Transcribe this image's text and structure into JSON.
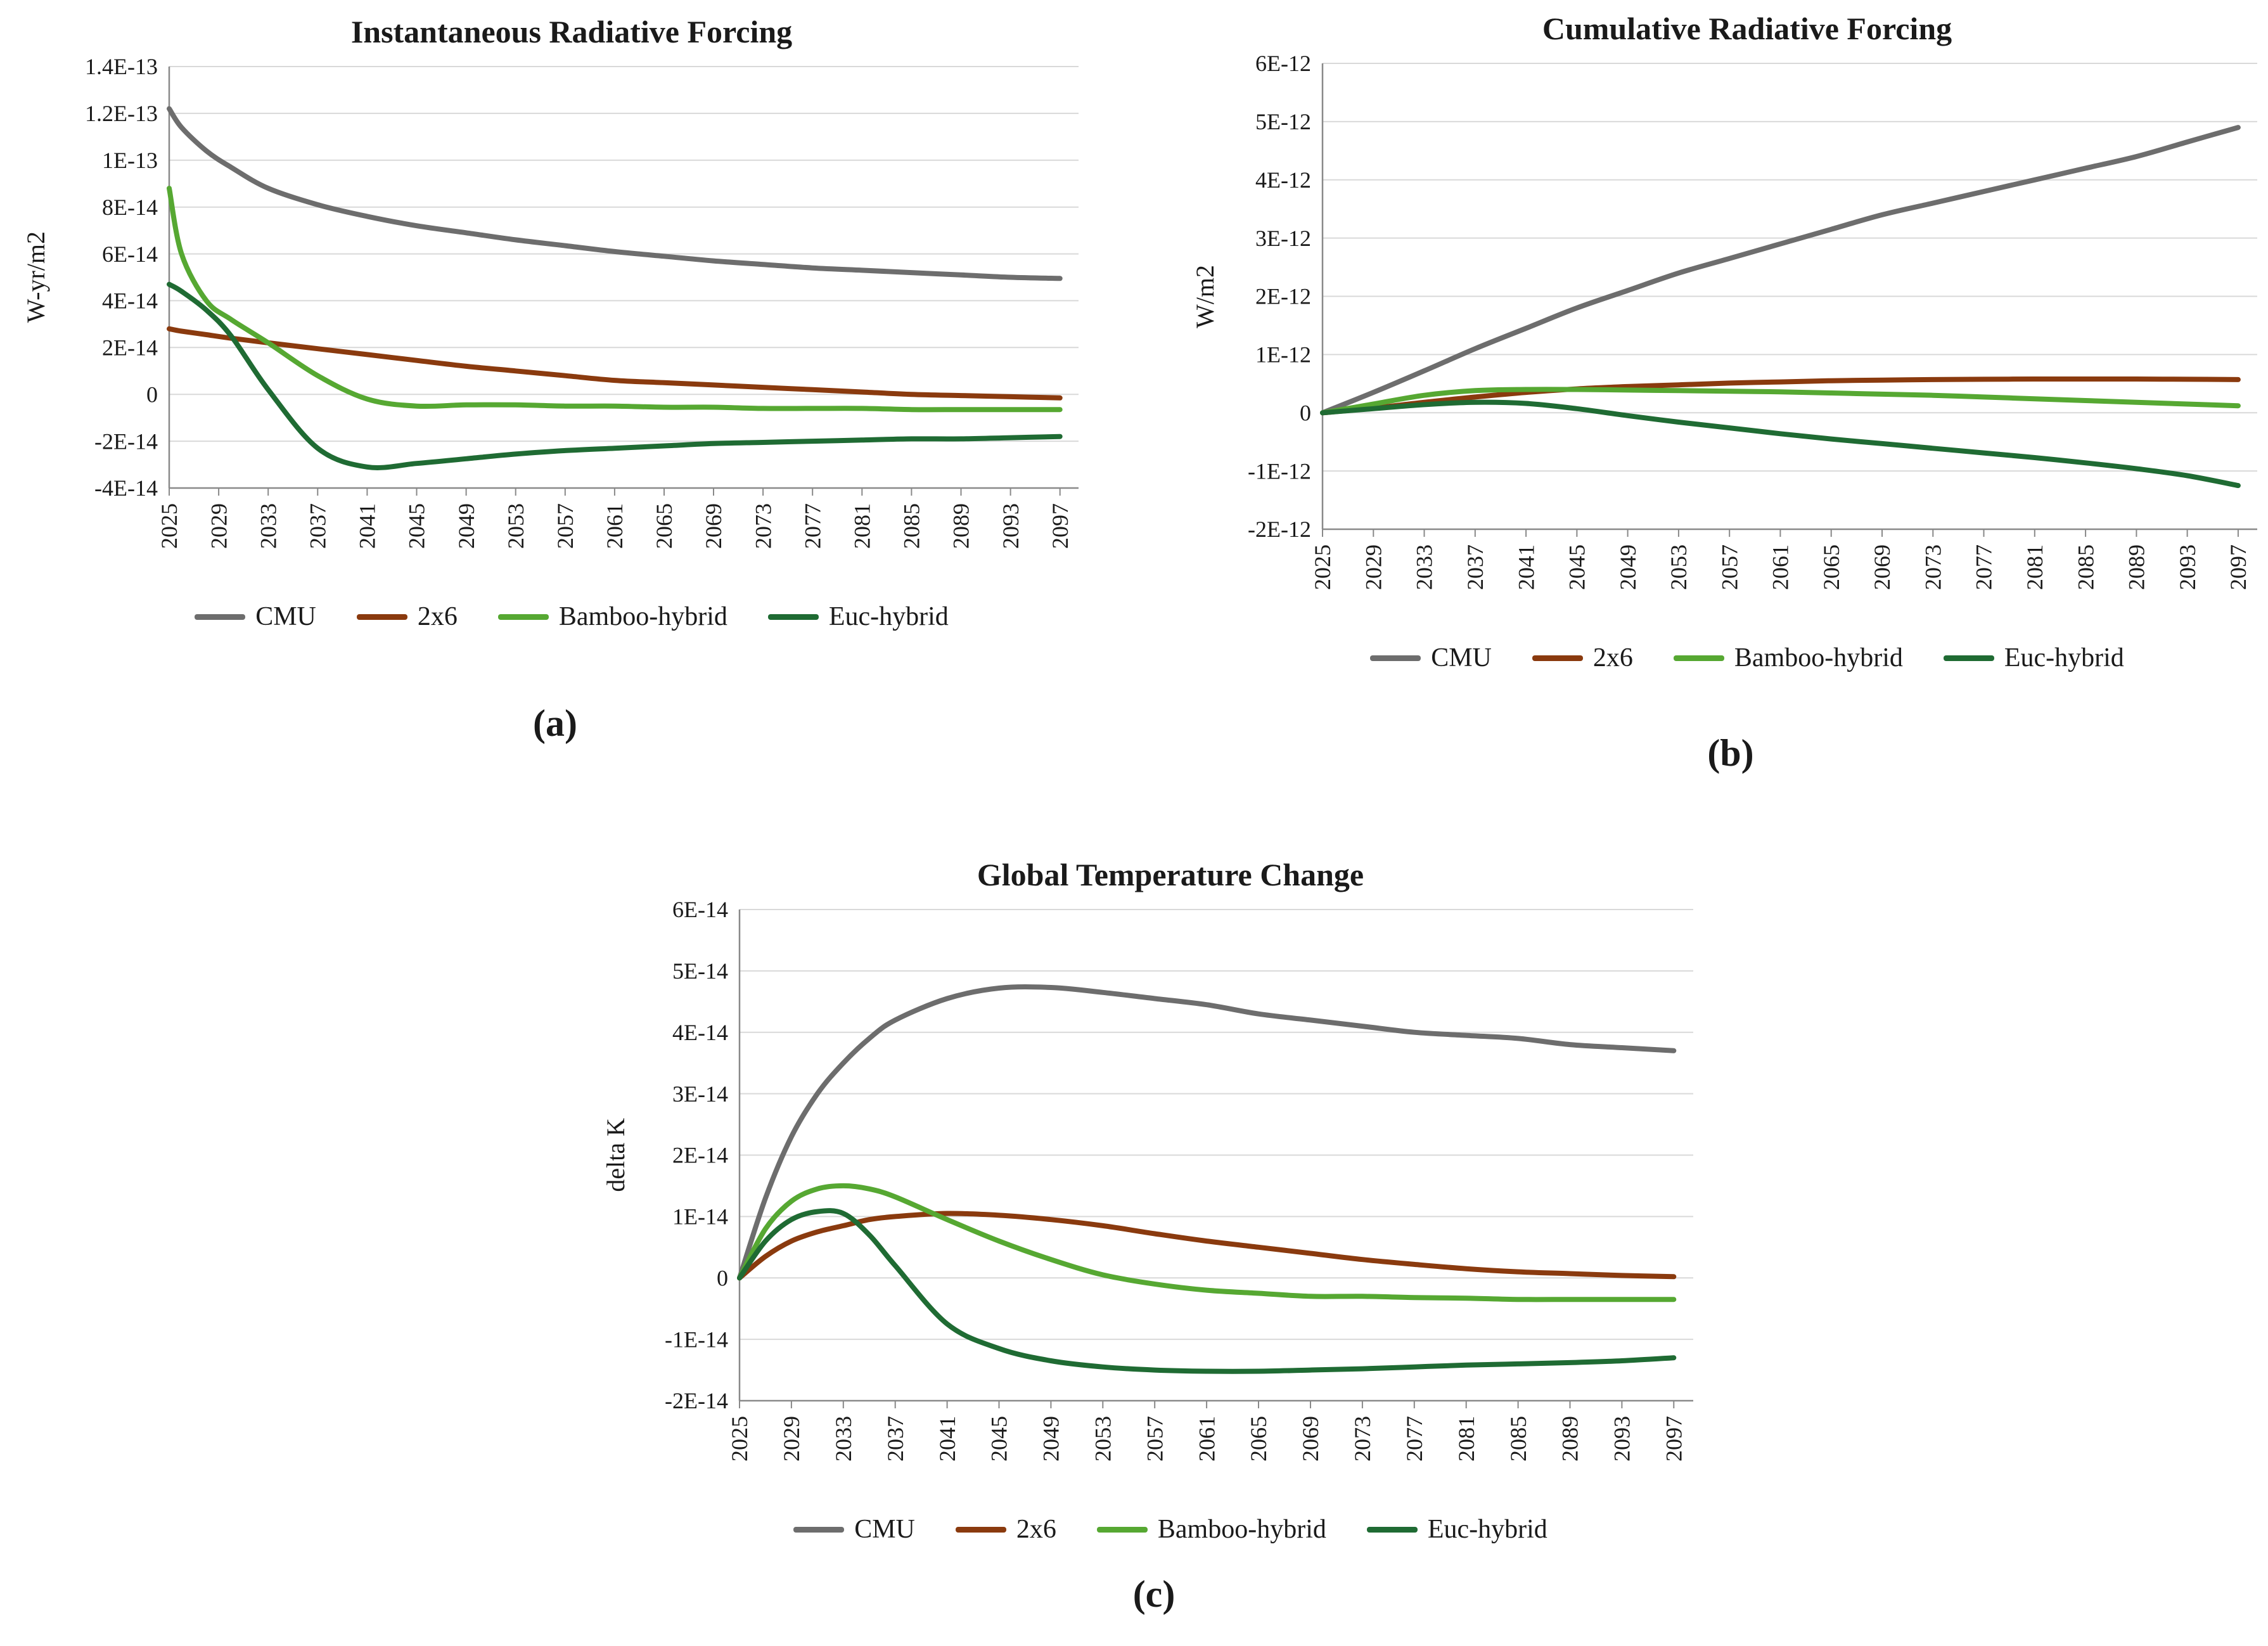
{
  "panel_labels": [
    "(a)",
    "(b)",
    "(c)"
  ],
  "chart_data": [
    {
      "type": "line",
      "title": "Instantaneous Radiative Forcing",
      "xlabel": "",
      "ylabel": "W-yr/m2",
      "xlim": [
        2025,
        2098.5
      ],
      "ylim": [
        -4e-14,
        1.4e-13
      ],
      "grid": true,
      "legend_position": "bottom",
      "xticks": [
        2025,
        2029,
        2033,
        2037,
        2041,
        2045,
        2049,
        2053,
        2057,
        2061,
        2065,
        2069,
        2073,
        2077,
        2081,
        2085,
        2089,
        2093,
        2097
      ],
      "yticks": [
        1.4e-13,
        1.2e-13,
        1e-13,
        8e-14,
        6e-14,
        4e-14,
        2e-14,
        0,
        -2e-14,
        -4e-14
      ],
      "ytick_labels": [
        "1.4E-13",
        "1.2E-13",
        "1E-13",
        "8E-14",
        "6E-14",
        "4E-14",
        "2E-14",
        "0",
        "-2E-14",
        "-4E-14"
      ],
      "x": [
        2025,
        2026,
        2028,
        2030,
        2033,
        2037,
        2041,
        2045,
        2049,
        2053,
        2057,
        2061,
        2065,
        2069,
        2073,
        2077,
        2081,
        2085,
        2089,
        2093,
        2097
      ],
      "series": [
        {
          "name": "CMU",
          "color": "#6d6d6d",
          "values": [
            1.22e-13,
            1.14e-13,
            1.04e-13,
            9.7e-14,
            8.8e-14,
            8.1e-14,
            7.6e-14,
            7.2e-14,
            6.9e-14,
            6.6e-14,
            6.35e-14,
            6.1e-14,
            5.9e-14,
            5.7e-14,
            5.55e-14,
            5.4e-14,
            5.3e-14,
            5.2e-14,
            5.1e-14,
            5e-14,
            4.95e-14
          ]
        },
        {
          "name": "2x6",
          "color": "#8a3a0e",
          "values": [
            2.8e-14,
            2.7e-14,
            2.55e-14,
            2.4e-14,
            2.2e-14,
            1.95e-14,
            1.7e-14,
            1.45e-14,
            1.2e-14,
            1e-14,
            8e-15,
            6e-15,
            5e-15,
            4e-15,
            3e-15,
            2e-15,
            1e-15,
            0,
            -5e-16,
            -1e-15,
            -1.5e-15
          ]
        },
        {
          "name": "Bamboo-hybrid",
          "color": "#56a832",
          "values": [
            8.8e-14,
            6e-14,
            4e-14,
            3.2e-14,
            2.2e-14,
            8e-15,
            -2e-15,
            -5e-15,
            -4.5e-15,
            -4.5e-15,
            -5e-15,
            -5e-15,
            -5.5e-15,
            -5.5e-15,
            -6e-15,
            -6e-15,
            -6e-15,
            -6.5e-15,
            -6.5e-15,
            -6.5e-15,
            -6.5e-15
          ]
        },
        {
          "name": "Euc-hybrid",
          "color": "#1f6b33",
          "values": [
            4.7e-14,
            4.4e-14,
            3.6e-14,
            2.5e-14,
            2e-15,
            -2.3e-14,
            -3.1e-14,
            -2.95e-14,
            -2.75e-14,
            -2.55e-14,
            -2.4e-14,
            -2.3e-14,
            -2.2e-14,
            -2.1e-14,
            -2.05e-14,
            -2e-14,
            -1.95e-14,
            -1.9e-14,
            -1.9e-14,
            -1.85e-14,
            -1.8e-14
          ]
        }
      ]
    },
    {
      "type": "line",
      "title": "Cumulative Radiative Forcing",
      "xlabel": "",
      "ylabel": "W/m2",
      "xlim": [
        2025,
        2098.5
      ],
      "ylim": [
        -2e-12,
        6e-12
      ],
      "grid": true,
      "legend_position": "bottom",
      "xticks": [
        2025,
        2029,
        2033,
        2037,
        2041,
        2045,
        2049,
        2053,
        2057,
        2061,
        2065,
        2069,
        2073,
        2077,
        2081,
        2085,
        2089,
        2093,
        2097
      ],
      "yticks": [
        6e-12,
        5e-12,
        4e-12,
        3e-12,
        2e-12,
        1e-12,
        0,
        -1e-12,
        -2e-12
      ],
      "ytick_labels": [
        "6E-12",
        "5E-12",
        "4E-12",
        "3E-12",
        "2E-12",
        "1E-12",
        "0",
        "-1E-12",
        "-2E-12"
      ],
      "x": [
        2025,
        2029,
        2033,
        2037,
        2041,
        2045,
        2049,
        2053,
        2057,
        2061,
        2065,
        2069,
        2073,
        2077,
        2081,
        2085,
        2089,
        2093,
        2097
      ],
      "series": [
        {
          "name": "CMU",
          "color": "#6d6d6d",
          "values": [
            0,
            3.5e-13,
            7.2e-13,
            1.1e-12,
            1.45e-12,
            1.8e-12,
            2.1e-12,
            2.4e-12,
            2.65e-12,
            2.9e-12,
            3.15e-12,
            3.4e-12,
            3.6e-12,
            3.8e-12,
            4e-12,
            4.2e-12,
            4.4e-12,
            4.65e-12,
            4.9e-12
          ]
        },
        {
          "name": "2x6",
          "color": "#8a3a0e",
          "values": [
            0,
            8e-14,
            1.8e-13,
            2.7e-13,
            3.5e-13,
            4.1e-13,
            4.5e-13,
            4.8e-13,
            5.1e-13,
            5.3e-13,
            5.5e-13,
            5.6e-13,
            5.7e-13,
            5.75e-13,
            5.8e-13,
            5.8e-13,
            5.8e-13,
            5.75e-13,
            5.7e-13
          ]
        },
        {
          "name": "Bamboo-hybrid",
          "color": "#56a832",
          "values": [
            0,
            1.5e-13,
            3e-13,
            3.8e-13,
            4e-13,
            4e-13,
            3.9e-13,
            3.8e-13,
            3.7e-13,
            3.6e-13,
            3.4e-13,
            3.2e-13,
            3e-13,
            2.7e-13,
            2.4e-13,
            2.1e-13,
            1.8e-13,
            1.5e-13,
            1.2e-13
          ]
        },
        {
          "name": "Euc-hybrid",
          "color": "#1f6b33",
          "values": [
            0,
            7e-14,
            1.4e-13,
            1.8e-13,
            1.6e-13,
            7e-14,
            -5e-14,
            -1.6e-13,
            -2.6e-13,
            -3.6e-13,
            -4.5e-13,
            -5.3e-13,
            -6.1e-13,
            -6.9e-13,
            -7.7e-13,
            -8.6e-13,
            -9.6e-13,
            -1.08e-12,
            -1.25e-12
          ]
        }
      ]
    },
    {
      "type": "line",
      "title": "Global Temperature Change",
      "xlabel": "",
      "ylabel": "delta K",
      "xlim": [
        2025,
        2098.5
      ],
      "ylim": [
        -2e-14,
        6e-14
      ],
      "grid": true,
      "legend_position": "bottom",
      "xticks": [
        2025,
        2029,
        2033,
        2037,
        2041,
        2045,
        2049,
        2053,
        2057,
        2061,
        2065,
        2069,
        2073,
        2077,
        2081,
        2085,
        2089,
        2093,
        2097
      ],
      "yticks": [
        6e-14,
        5e-14,
        4e-14,
        3e-14,
        2e-14,
        1e-14,
        0,
        -1e-14,
        -2e-14
      ],
      "ytick_labels": [
        "6E-14",
        "5E-14",
        "4E-14",
        "3E-14",
        "2E-14",
        "1E-14",
        "0",
        "-1E-14",
        "-2E-14"
      ],
      "x": [
        2025,
        2027,
        2029,
        2031,
        2033,
        2035,
        2037,
        2041,
        2045,
        2049,
        2053,
        2057,
        2061,
        2065,
        2069,
        2073,
        2077,
        2081,
        2085,
        2089,
        2093,
        2097
      ],
      "series": [
        {
          "name": "CMU",
          "color": "#6d6d6d",
          "values": [
            0,
            1.3e-14,
            2.3e-14,
            3e-14,
            3.5e-14,
            3.9e-14,
            4.2e-14,
            4.55e-14,
            4.72e-14,
            4.73e-14,
            4.65e-14,
            4.55e-14,
            4.45e-14,
            4.3e-14,
            4.2e-14,
            4.1e-14,
            4e-14,
            3.95e-14,
            3.9e-14,
            3.8e-14,
            3.75e-14,
            3.7e-14
          ]
        },
        {
          "name": "2x6",
          "color": "#8a3a0e",
          "values": [
            0,
            3.5e-15,
            6e-15,
            7.5e-15,
            8.5e-15,
            9.5e-15,
            1e-14,
            1.05e-14,
            1.02e-14,
            9.5e-15,
            8.5e-15,
            7.2e-15,
            6e-15,
            5e-15,
            4e-15,
            3e-15,
            2.2e-15,
            1.5e-15,
            1e-15,
            7e-16,
            4e-16,
            2e-16
          ]
        },
        {
          "name": "Bamboo-hybrid",
          "color": "#56a832",
          "values": [
            0,
            8e-15,
            1.25e-14,
            1.45e-14,
            1.5e-14,
            1.45e-14,
            1.32e-14,
            9.5e-15,
            6e-15,
            3e-15,
            5e-16,
            -1e-15,
            -2e-15,
            -2.5e-15,
            -3e-15,
            -3e-15,
            -3.2e-15,
            -3.3e-15,
            -3.5e-15,
            -3.5e-15,
            -3.5e-15,
            -3.5e-15
          ]
        },
        {
          "name": "Euc-hybrid",
          "color": "#1f6b33",
          "values": [
            0,
            6e-15,
            9.5e-15,
            1.08e-14,
            1.05e-14,
            7e-15,
            2e-15,
            -7.5e-15,
            -1.15e-14,
            -1.35e-14,
            -1.45e-14,
            -1.5e-14,
            -1.52e-14,
            -1.52e-14,
            -1.5e-14,
            -1.48e-14,
            -1.45e-14,
            -1.42e-14,
            -1.4e-14,
            -1.38e-14,
            -1.35e-14,
            -1.3e-14
          ]
        }
      ]
    }
  ]
}
